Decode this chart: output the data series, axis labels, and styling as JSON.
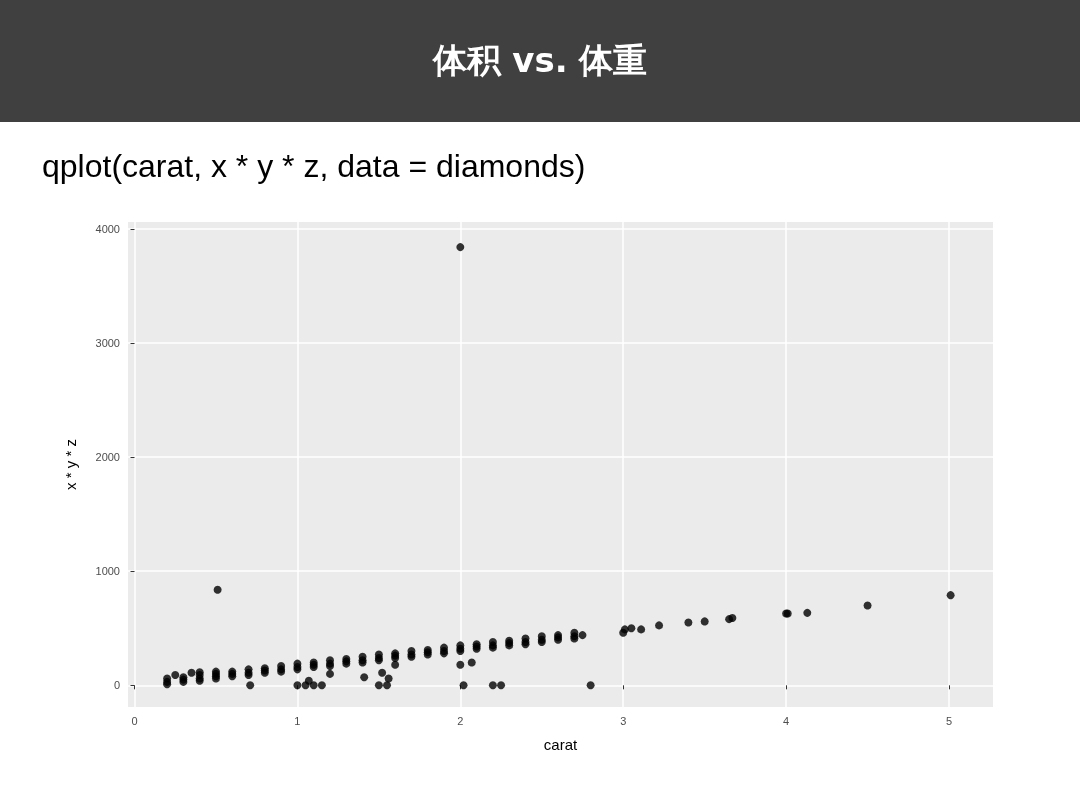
{
  "chart_data": {
    "type": "scatter",
    "title": "体积 vs. 体重",
    "subtitle": "qplot(carat, x * y * z, data = diamonds)",
    "xlabel": "carat",
    "ylabel": "x * y * z",
    "xlim": [
      -0.04,
      5.27
    ],
    "ylim": [
      -190,
      4060
    ],
    "xticks": [
      0,
      1,
      2,
      3,
      4,
      5
    ],
    "yticks": [
      0,
      1000,
      2000,
      3000,
      4000
    ],
    "grid": true,
    "marker": "circle",
    "series": [
      {
        "color": "#000000",
        "x": [
          0.2,
          0.2,
          0.2,
          0.3,
          0.3,
          0.3,
          0.4,
          0.4,
          0.4,
          0.5,
          0.5,
          0.5,
          0.6,
          0.6,
          0.6,
          0.7,
          0.7,
          0.7,
          0.8,
          0.8,
          0.8,
          0.9,
          0.9,
          0.9,
          1.0,
          1.0,
          1.0,
          1.1,
          1.1,
          1.1,
          1.2,
          1.2,
          1.2,
          1.3,
          1.3,
          1.3,
          1.4,
          1.4,
          1.4,
          1.5,
          1.5,
          1.5,
          1.6,
          1.6,
          1.6,
          1.7,
          1.7,
          1.7,
          1.8,
          1.8,
          1.8,
          1.9,
          1.9,
          1.9,
          2.0,
          2.0,
          2.0,
          2.1,
          2.1,
          2.1,
          2.2,
          2.2,
          2.2,
          2.3,
          2.3,
          2.3,
          2.4,
          2.4,
          2.4,
          2.5,
          2.5,
          2.5,
          2.6,
          2.6,
          2.6,
          2.7,
          2.7,
          2.7,
          2.75,
          0.51,
          2.0,
          0.71,
          1.0,
          1.05,
          1.1,
          1.15,
          1.5,
          1.55,
          2.02,
          2.2,
          2.25,
          2.8,
          1.41,
          1.52,
          1.56,
          1.2,
          1.07,
          1.6,
          2.0,
          2.07,
          3.0,
          3.01,
          3.05,
          3.11,
          3.22,
          3.4,
          3.5,
          3.65,
          3.67,
          4.0,
          4.01,
          4.13,
          4.5,
          5.01,
          0.25,
          0.35,
          0.4,
          0.5
        ],
        "values": [
          10,
          30,
          60,
          30,
          50,
          70,
          40,
          60,
          90,
          60,
          80,
          100,
          80,
          100,
          120,
          90,
          110,
          140,
          110,
          130,
          150,
          120,
          140,
          170,
          140,
          160,
          190,
          160,
          180,
          200,
          170,
          190,
          220,
          190,
          210,
          230,
          200,
          220,
          250,
          220,
          240,
          270,
          240,
          260,
          280,
          250,
          270,
          300,
          270,
          290,
          310,
          280,
          300,
          330,
          300,
          320,
          350,
          320,
          340,
          360,
          330,
          350,
          380,
          350,
          370,
          390,
          360,
          380,
          410,
          380,
          400,
          430,
          400,
          420,
          440,
          410,
          430,
          460,
          440,
          838,
          3840,
          0,
          0,
          0,
          0,
          0,
          0,
          0,
          0,
          0,
          0,
          0,
          70,
          110,
          60,
          100,
          40,
          180,
          180,
          200,
          460,
          490,
          500,
          490,
          525,
          550,
          560,
          580,
          590,
          630,
          630,
          635,
          700,
          790,
          90,
          110,
          115,
          120
        ]
      }
    ]
  }
}
